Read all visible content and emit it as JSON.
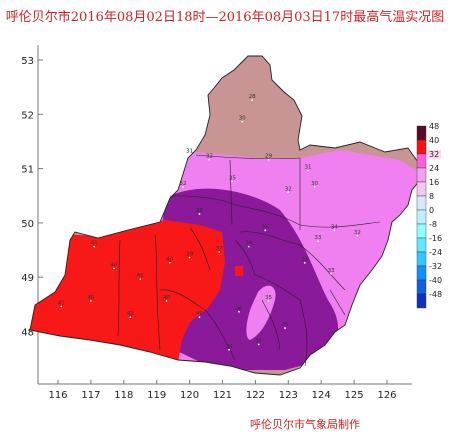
{
  "title": "呼伦贝尔市2016年08月02日18时—2016年08月03日17时最高气温实况图",
  "credit": "呼伦贝尔市气象局制作",
  "x_ticks": [
    "116",
    "117",
    "118",
    "119",
    "120",
    "121",
    "122",
    "123",
    "124",
    "125",
    "126"
  ],
  "y_ticks": [
    "53",
    "52",
    "51",
    "50",
    "49",
    "48"
  ],
  "legend": {
    "labels": [
      "48",
      "40",
      "32",
      "24",
      "16",
      "8",
      "0",
      "-8",
      "-16",
      "-24",
      "-32",
      "-40",
      "-48"
    ],
    "colors": [
      "#5c0a28",
      "#ff1010",
      "#ff60d8",
      "#f0a0f0",
      "#f0c8f0",
      "#d8e8f8",
      "#c0f0ff",
      "#90ffff",
      "#60e8ff",
      "#30c8ff",
      "#1090ff",
      "#1060e0",
      "#1030c0"
    ],
    "highlight": "32"
  },
  "colors": {
    "zone_28": "#c89494",
    "zone_32": "#f080f0",
    "zone_36": "#8a1a9a",
    "zone_40": "#f81818",
    "county_line": "#222222"
  },
  "stations": [
    {
      "v": "28",
      "lon": 121.9,
      "lat": 52.3
    },
    {
      "v": "30",
      "lon": 121.6,
      "lat": 51.9
    },
    {
      "v": "31",
      "lon": 120.0,
      "lat": 51.3
    },
    {
      "v": "32",
      "lon": 120.6,
      "lat": 51.2
    },
    {
      "v": "29",
      "lon": 122.4,
      "lat": 51.2
    },
    {
      "v": "31",
      "lon": 123.6,
      "lat": 51.0
    },
    {
      "v": "32",
      "lon": 119.8,
      "lat": 50.7
    },
    {
      "v": "35",
      "lon": 121.3,
      "lat": 50.8
    },
    {
      "v": "32",
      "lon": 123.0,
      "lat": 50.6
    },
    {
      "v": "30",
      "lon": 123.8,
      "lat": 50.7
    },
    {
      "v": "34",
      "lon": 124.4,
      "lat": 49.9
    },
    {
      "v": "33",
      "lon": 123.9,
      "lat": 49.7
    },
    {
      "v": "32",
      "lon": 125.1,
      "lat": 49.8
    },
    {
      "v": "33",
      "lon": 123.5,
      "lat": 49.3
    },
    {
      "v": "33",
      "lon": 124.3,
      "lat": 49.1
    },
    {
      "v": "36",
      "lon": 122.3,
      "lat": 49.9
    },
    {
      "v": "35",
      "lon": 121.8,
      "lat": 49.6
    },
    {
      "v": "37",
      "lon": 120.9,
      "lat": 49.5
    },
    {
      "v": "38",
      "lon": 120.3,
      "lat": 50.2
    },
    {
      "v": "39",
      "lon": 120.0,
      "lat": 49.4
    },
    {
      "v": "41",
      "lon": 117.1,
      "lat": 49.6
    },
    {
      "v": "40",
      "lon": 117.7,
      "lat": 49.2
    },
    {
      "v": "41",
      "lon": 118.5,
      "lat": 49.0
    },
    {
      "v": "40",
      "lon": 119.4,
      "lat": 49.3
    },
    {
      "v": "40",
      "lon": 117.0,
      "lat": 48.6
    },
    {
      "v": "41",
      "lon": 116.1,
      "lat": 48.5
    },
    {
      "v": "40",
      "lon": 119.3,
      "lat": 48.6
    },
    {
      "v": "42",
      "lon": 118.2,
      "lat": 48.3
    },
    {
      "v": "40",
      "lon": 120.3,
      "lat": 48.3
    },
    {
      "v": "36",
      "lon": 121.5,
      "lat": 48.4
    },
    {
      "v": "35",
      "lon": 122.4,
      "lat": 48.6
    },
    {
      "v": "36",
      "lon": 122.9,
      "lat": 48.1
    },
    {
      "v": "36",
      "lon": 121.2,
      "lat": 47.7
    },
    {
      "v": "35",
      "lon": 122.1,
      "lat": 47.8
    }
  ]
}
